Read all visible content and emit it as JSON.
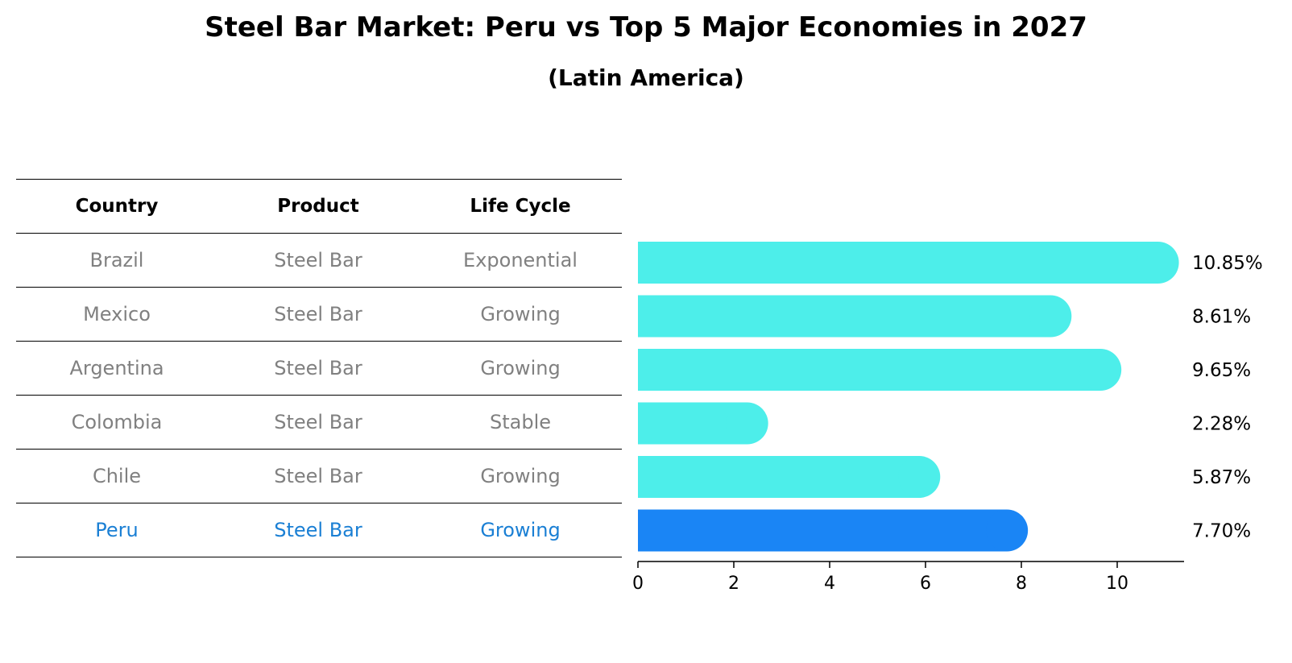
{
  "title": "Steel Bar Market: Peru vs Top 5 Major Economies in 2027",
  "subtitle": "(Latin America)",
  "table": {
    "headers": [
      "Country",
      "Product",
      "Life Cycle"
    ],
    "rows": [
      [
        "Brazil",
        "Steel Bar",
        "Exponential"
      ],
      [
        "Mexico",
        "Steel Bar",
        "Growing"
      ],
      [
        "Argentina",
        "Steel Bar",
        "Growing"
      ],
      [
        "Colombia",
        "Steel Bar",
        "Stable"
      ],
      [
        "Chile",
        "Steel Bar",
        "Growing"
      ],
      [
        "Peru",
        "Steel Bar",
        "Growing"
      ]
    ],
    "highlight_row": 5,
    "highlight_color": "#1a7fd4"
  },
  "chart_data": {
    "type": "bar",
    "orientation": "horizontal",
    "categories": [
      "Brazil",
      "Mexico",
      "Argentina",
      "Colombia",
      "Chile",
      "Peru"
    ],
    "values": [
      10.85,
      8.61,
      9.65,
      2.28,
      5.87,
      7.7
    ],
    "value_labels": [
      "10.85%",
      "8.61%",
      "9.65%",
      "2.28%",
      "5.87%",
      "7.70%"
    ],
    "colors": [
      "#4deeea",
      "#4deeea",
      "#4deeea",
      "#4deeea",
      "#4deeea",
      "#1a85f5"
    ],
    "xlim": [
      0,
      11.4
    ],
    "xticks": [
      0,
      2,
      4,
      6,
      8,
      10
    ],
    "grid": false
  }
}
